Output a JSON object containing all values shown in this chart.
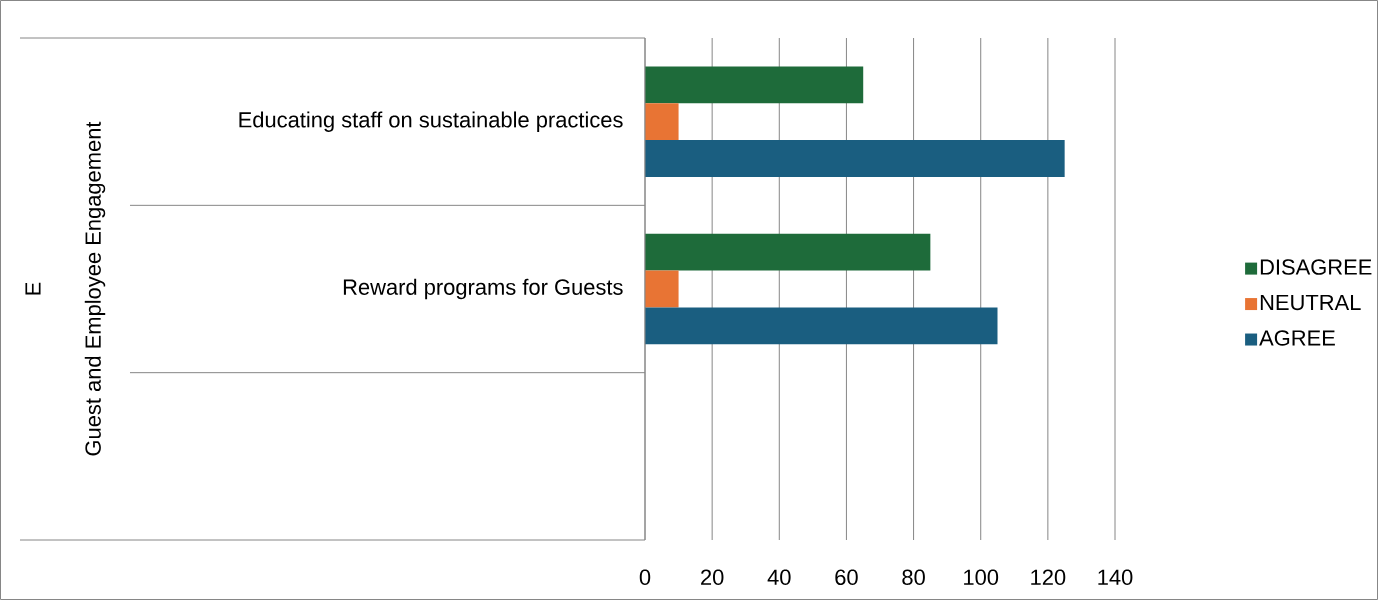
{
  "chart_data": {
    "type": "bar",
    "orientation": "horizontal",
    "categories": [
      "Educating staff on sustainable practices",
      "Reward programs for Guests",
      null
    ],
    "annotations": [
      "E",
      "Guest and Employee Engagement"
    ],
    "series": [
      {
        "name": "DISAGREE",
        "color": "#1e6b3a",
        "values": [
          65,
          85,
          null
        ]
      },
      {
        "name": "NEUTRAL",
        "color": "#e87434",
        "values": [
          10,
          10,
          null
        ]
      },
      {
        "name": "AGREE",
        "color": "#1a5e80",
        "values": [
          125,
          105,
          null
        ]
      }
    ],
    "xlim": [
      0,
      140
    ],
    "xticks": [
      0,
      20,
      40,
      60,
      80,
      100,
      120,
      140
    ],
    "grid": "x",
    "legend": "right"
  }
}
